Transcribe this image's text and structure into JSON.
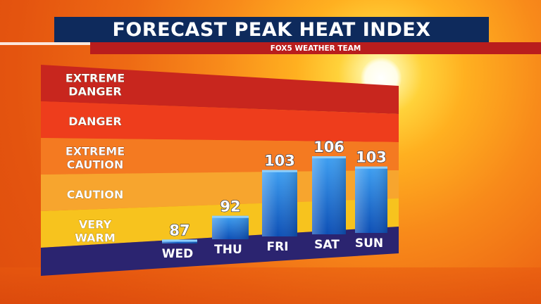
{
  "header": {
    "title": "FORECAST PEAK HEAT INDEX",
    "subtitle": "FOX5 WEATHER TEAM"
  },
  "zones": [
    {
      "lines": [
        "EXTREME",
        "DANGER"
      ],
      "color": "#c8261e"
    },
    {
      "lines": [
        "DANGER"
      ],
      "color": "#ee3d1c"
    },
    {
      "lines": [
        "EXTREME",
        "CAUTION"
      ],
      "color": "#f47a21"
    },
    {
      "lines": [
        "CAUTION"
      ],
      "color": "#f7a52e"
    },
    {
      "lines": [
        "VERY",
        "WARM"
      ],
      "color": "#f7c31e"
    }
  ],
  "colors": {
    "bar_top": "#3fa0f2",
    "bar_bottom": "#0d4fb5",
    "base": "#2b2470"
  },
  "chart_data": {
    "type": "bar",
    "title": "FORECAST PEAK HEAT INDEX",
    "categories": [
      "WED",
      "THU",
      "FRI",
      "SAT",
      "SUN"
    ],
    "values": [
      87,
      92,
      103,
      106,
      103
    ],
    "value_labels": [
      "87",
      "92",
      "103",
      "106",
      "103"
    ],
    "xlabel": "",
    "ylabel": "",
    "ylim": [
      86,
      112
    ],
    "grid": false
  }
}
